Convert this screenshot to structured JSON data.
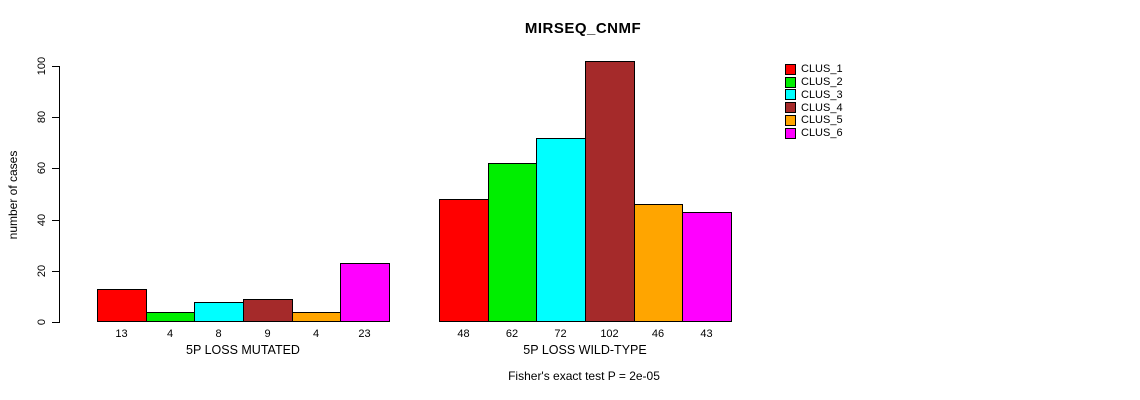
{
  "chart_data": {
    "type": "bar",
    "title": "MIRSEQ_CNMF",
    "ylabel": "number of cases",
    "xlabel": "",
    "ylim": [
      0,
      100
    ],
    "yticks": [
      0,
      20,
      40,
      60,
      80,
      100
    ],
    "grid": false,
    "legend_position": "right-outside",
    "categories": [
      "5P LOSS MUTATED",
      "5P LOSS WILD-TYPE"
    ],
    "series": [
      {
        "name": "CLUS_1",
        "color": "#FF0000",
        "values": [
          13,
          48
        ]
      },
      {
        "name": "CLUS_2",
        "color": "#00EE00",
        "values": [
          4,
          62
        ]
      },
      {
        "name": "CLUS_3",
        "color": "#00FFFF",
        "values": [
          8,
          72
        ]
      },
      {
        "name": "CLUS_4",
        "color": "#A52A2A",
        "values": [
          9,
          102
        ]
      },
      {
        "name": "CLUS_5",
        "color": "#FFA500",
        "values": [
          4,
          46
        ]
      },
      {
        "name": "CLUS_6",
        "color": "#FF00FF",
        "values": [
          23,
          43
        ]
      }
    ],
    "bar_value_labels_shown": true,
    "annotation": "Fisher's exact test P = 2e-05"
  },
  "colors": {
    "background": "#FFFFFF",
    "axis": "#000000",
    "text": "#000000"
  }
}
